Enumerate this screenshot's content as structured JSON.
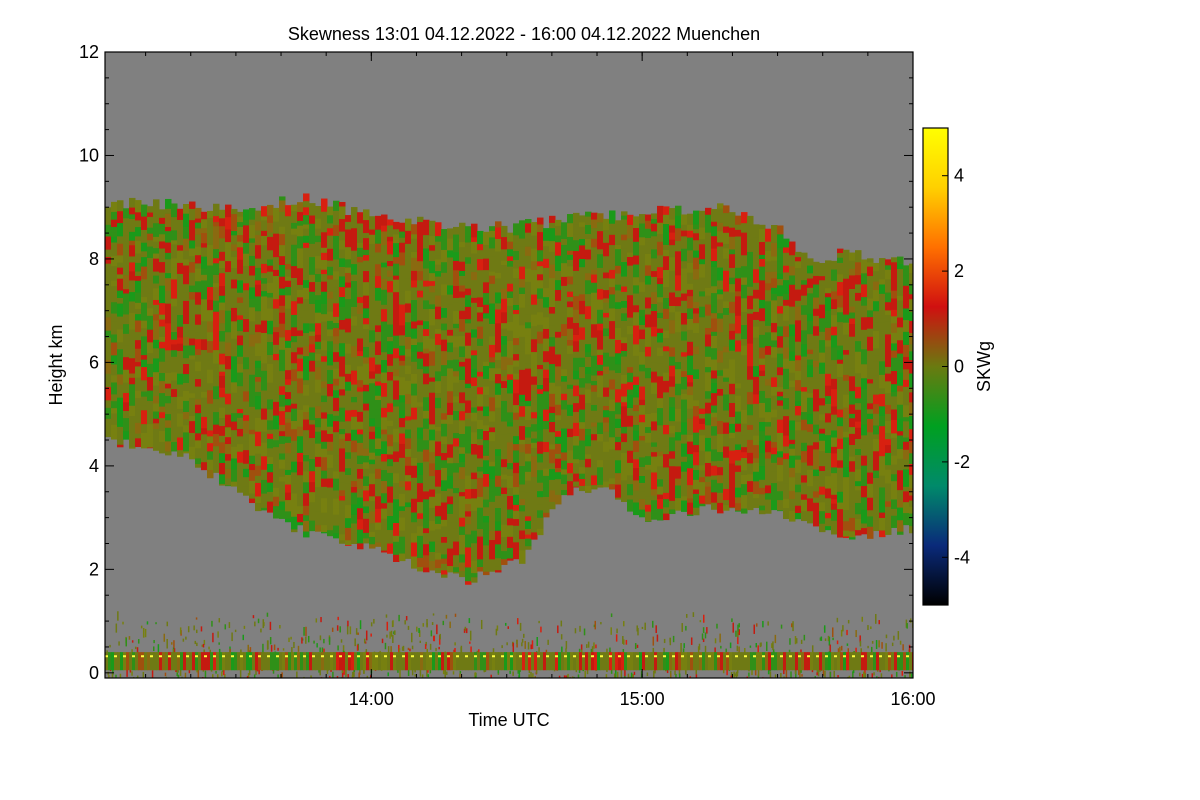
{
  "chart_data": {
    "type": "heatmap",
    "title": "Skewness   13:01 04.12.2022 - 16:00 04.12.2022 Muenchen",
    "xlabel": "Time UTC",
    "ylabel": "Height km",
    "colorbar_label": "SKWg",
    "x_ticks": [
      "14:00",
      "15:00",
      "16:00"
    ],
    "x_tick_values": [
      14.0,
      15.0,
      16.0
    ],
    "x_range": [
      13.0167,
      16.0
    ],
    "y_ticks": [
      "0",
      "2",
      "4",
      "6",
      "8",
      "10",
      "12"
    ],
    "y_tick_values": [
      0,
      2,
      4,
      6,
      8,
      10,
      12
    ],
    "y_range": [
      -0.1,
      12
    ],
    "colorbar_ticks": [
      "-4",
      "-2",
      "0",
      "2",
      "4"
    ],
    "colorbar_tick_values": [
      -4,
      -2,
      0,
      2,
      4
    ],
    "colorbar_range": [
      -5,
      5
    ],
    "colorscale": [
      "#000000",
      "#0a2a7a",
      "#008a6a",
      "#00a020",
      "#6a7a10",
      "#d01010",
      "#ff7000",
      "#ffd000",
      "#ffff00"
    ],
    "no_data_color": "#808080",
    "cloud_top_km": [
      [
        13.0167,
        9.1
      ],
      [
        13.5,
        9.0
      ],
      [
        13.75,
        9.2
      ],
      [
        14.0,
        8.8
      ],
      [
        14.5,
        8.6
      ],
      [
        14.75,
        8.8
      ],
      [
        15.0,
        8.9
      ],
      [
        15.25,
        9.0
      ],
      [
        15.5,
        8.6
      ],
      [
        15.6,
        8.0
      ],
      [
        15.75,
        8.1
      ],
      [
        16.0,
        7.9
      ]
    ],
    "cloud_base_km": [
      [
        13.0167,
        4.5
      ],
      [
        13.3,
        4.2
      ],
      [
        13.6,
        3.1
      ],
      [
        13.75,
        2.7
      ],
      [
        14.0,
        2.4
      ],
      [
        14.2,
        2.0
      ],
      [
        14.35,
        1.8
      ],
      [
        14.55,
        2.2
      ],
      [
        14.7,
        3.5
      ],
      [
        14.85,
        3.6
      ],
      [
        15.0,
        3.0
      ],
      [
        15.25,
        3.2
      ],
      [
        15.5,
        3.1
      ],
      [
        15.75,
        2.6
      ],
      [
        16.0,
        2.8
      ]
    ],
    "boundary_layer_top_km": 1.2
  }
}
